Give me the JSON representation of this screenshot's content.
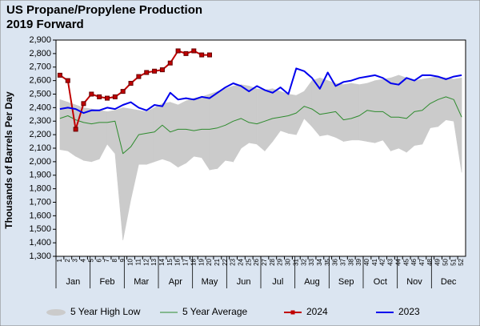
{
  "chart_data": {
    "type": "line",
    "title": "US Propane/Propylene Production",
    "subtitle": "2019 Forward",
    "y_label": "Thousands of Barrels Per Day",
    "categories": [
      "1",
      "2",
      "3",
      "4",
      "5",
      "6",
      "7",
      "8",
      "9",
      "10",
      "11",
      "12",
      "13",
      "14",
      "15",
      "16",
      "17",
      "18",
      "19",
      "20",
      "21",
      "22",
      "23",
      "24",
      "25",
      "26",
      "27",
      "28",
      "29",
      "30",
      "31",
      "32",
      "33",
      "34",
      "35",
      "36",
      "37",
      "38",
      "39",
      "40",
      "41",
      "42",
      "43",
      "44",
      "45",
      "46",
      "47",
      "48",
      "49",
      "50",
      "51",
      "52"
    ],
    "month_labels": [
      "Jan",
      "Feb",
      "Mar",
      "Apr",
      "May",
      "Jun",
      "Jul",
      "Aug",
      "Sep",
      "Oct",
      "Nov",
      "Dec"
    ],
    "ylim": [
      1300,
      2900
    ],
    "yticks": [
      {
        "value": 1300,
        "label": "1,300"
      },
      {
        "value": 1400,
        "label": "1,400"
      },
      {
        "value": 1500,
        "label": "1,500"
      },
      {
        "value": 1600,
        "label": "1,600"
      },
      {
        "value": 1700,
        "label": "1,700"
      },
      {
        "value": 1800,
        "label": "1,800"
      },
      {
        "value": 1900,
        "label": "1,900"
      },
      {
        "value": 2000,
        "label": "2,000"
      },
      {
        "value": 2100,
        "label": "2,100"
      },
      {
        "value": 2200,
        "label": "2,200"
      },
      {
        "value": 2300,
        "label": "2,300"
      },
      {
        "value": 2400,
        "label": "2,400"
      },
      {
        "value": 2500,
        "label": "2,500"
      },
      {
        "value": 2600,
        "label": "2,600"
      },
      {
        "value": 2700,
        "label": "2,700"
      },
      {
        "value": 2800,
        "label": "2,800"
      },
      {
        "value": 2900,
        "label": "2,900"
      }
    ],
    "band": {
      "name": "5 Year High Low",
      "color": "#cbcbcb",
      "high": [
        2460,
        2440,
        2420,
        2400,
        2390,
        2380,
        2370,
        2380,
        2400,
        2390,
        2380,
        2370,
        2400,
        2430,
        2440,
        2420,
        2450,
        2470,
        2480,
        2500,
        2520,
        2540,
        2560,
        2570,
        2560,
        2540,
        2530,
        2540,
        2520,
        2500,
        2490,
        2520,
        2600,
        2620,
        2600,
        2580,
        2570,
        2580,
        2570,
        2580,
        2600,
        2610,
        2620,
        2640,
        2620,
        2600,
        2610,
        2620,
        2630,
        2620,
        2610,
        2620
      ],
      "low": [
        2090,
        2080,
        2040,
        2010,
        2000,
        2020,
        2130,
        2060,
        1420,
        1720,
        1980,
        1980,
        2000,
        2020,
        2000,
        1960,
        1990,
        2040,
        2030,
        1940,
        1950,
        2010,
        2000,
        2100,
        2140,
        2130,
        2080,
        2150,
        2230,
        2210,
        2200,
        2320,
        2260,
        2190,
        2200,
        2180,
        2150,
        2160,
        2160,
        2150,
        2140,
        2160,
        2080,
        2100,
        2070,
        2120,
        2130,
        2250,
        2260,
        2310,
        2300,
        1920
      ]
    },
    "series": [
      {
        "name": "5 Year Average",
        "color": "#2e8b2e",
        "width": 1,
        "values": [
          2320,
          2340,
          2310,
          2290,
          2280,
          2290,
          2290,
          2300,
          2060,
          2110,
          2200,
          2210,
          2220,
          2270,
          2220,
          2240,
          2240,
          2230,
          2240,
          2240,
          2250,
          2270,
          2300,
          2320,
          2290,
          2280,
          2300,
          2320,
          2330,
          2340,
          2360,
          2410,
          2390,
          2350,
          2360,
          2370,
          2310,
          2320,
          2340,
          2380,
          2370,
          2370,
          2330,
          2330,
          2320,
          2370,
          2380,
          2430,
          2460,
          2480,
          2460,
          2330
        ]
      },
      {
        "name": "2024",
        "color": "#c00000",
        "width": 2,
        "marker": "square",
        "values": [
          2640,
          2600,
          2240,
          2430,
          2500,
          2480,
          2470,
          2480,
          2520,
          2580,
          2630,
          2660,
          2670,
          2680,
          2730,
          2820,
          2800,
          2820,
          2790,
          2790,
          null,
          null,
          null,
          null,
          null,
          null,
          null,
          null,
          null,
          null,
          null,
          null,
          null,
          null,
          null,
          null,
          null,
          null,
          null,
          null,
          null,
          null,
          null,
          null,
          null,
          null,
          null,
          null,
          null,
          null,
          null,
          null
        ]
      },
      {
        "name": "2023",
        "color": "#0000ee",
        "width": 2,
        "values": [
          2390,
          2400,
          2390,
          2360,
          2380,
          2380,
          2400,
          2390,
          2420,
          2440,
          2400,
          2380,
          2420,
          2410,
          2510,
          2460,
          2470,
          2460,
          2480,
          2470,
          2510,
          2550,
          2580,
          2560,
          2520,
          2560,
          2530,
          2510,
          2550,
          2500,
          2690,
          2670,
          2620,
          2540,
          2660,
          2560,
          2590,
          2600,
          2620,
          2630,
          2640,
          2620,
          2580,
          2570,
          2620,
          2600,
          2640,
          2640,
          2630,
          2610,
          2630,
          2640
        ]
      }
    ]
  }
}
